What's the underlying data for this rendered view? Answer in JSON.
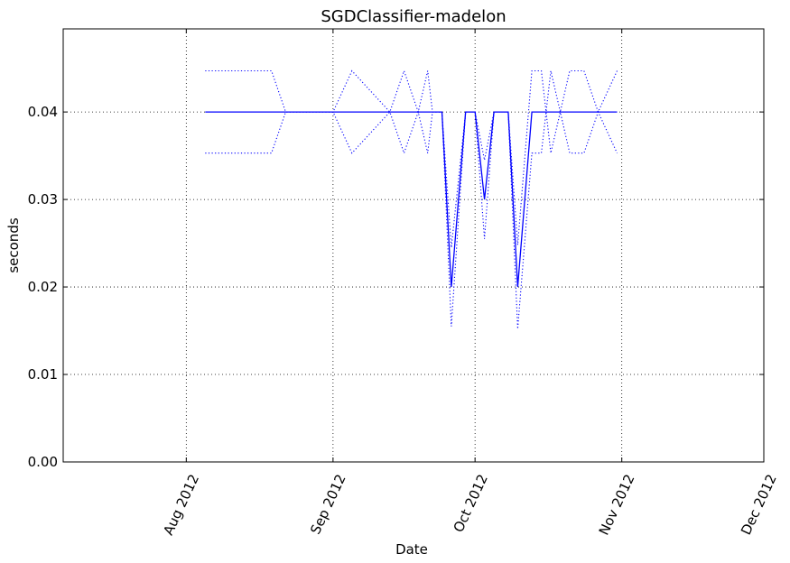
{
  "chart_data": {
    "type": "line",
    "title": "SGDClassifier-madelon",
    "xlabel": "Date",
    "ylabel": "seconds",
    "xlim": [
      "2012-07-06",
      "2012-12-01"
    ],
    "ylim": [
      0,
      0.0495
    ],
    "grid": true,
    "x_ticks": [
      {
        "date": "2012-08-01",
        "label": "Aug 2012"
      },
      {
        "date": "2012-09-01",
        "label": "Sep 2012"
      },
      {
        "date": "2012-10-01",
        "label": "Oct 2012"
      },
      {
        "date": "2012-11-01",
        "label": "Nov 2012"
      },
      {
        "date": "2012-12-01",
        "label": "Dec 2012"
      }
    ],
    "y_ticks": [
      {
        "value": 0,
        "label": "0.00"
      },
      {
        "value": 0.01,
        "label": "0.01"
      },
      {
        "value": 0.02,
        "label": "0.02"
      },
      {
        "value": 0.03,
        "label": "0.03"
      },
      {
        "value": 0.04,
        "label": "0.04"
      }
    ],
    "color": "#0000ff",
    "series": [
      {
        "style": "solid",
        "x": [
          "2012-08-05",
          "2012-08-19",
          "2012-08-22",
          "2012-09-01",
          "2012-09-05",
          "2012-09-13",
          "2012-09-16",
          "2012-09-19",
          "2012-09-21",
          "2012-09-22",
          "2012-09-24",
          "2012-09-26",
          "2012-09-29",
          "2012-10-01",
          "2012-10-03",
          "2012-10-05",
          "2012-10-07",
          "2012-10-08",
          "2012-10-10",
          "2012-10-13",
          "2012-10-15",
          "2012-10-17",
          "2012-10-21",
          "2012-10-24",
          "2012-10-27",
          "2012-10-31"
        ],
        "values": [
          0.04,
          0.04,
          0.04,
          0.04,
          0.04,
          0.04,
          0.04,
          0.04,
          0.04,
          0.04,
          0.04,
          0.02,
          0.04,
          0.04,
          0.03,
          0.04,
          0.04,
          0.04,
          0.02,
          0.04,
          0.04,
          0.04,
          0.04,
          0.04,
          0.04,
          0.04
        ]
      },
      {
        "style": "dotted",
        "x": [
          "2012-08-05",
          "2012-08-19",
          "2012-08-22",
          "2012-09-01",
          "2012-09-05",
          "2012-09-13",
          "2012-09-16",
          "2012-09-19",
          "2012-09-21",
          "2012-09-22",
          "2012-09-24",
          "2012-09-26",
          "2012-09-29",
          "2012-10-01",
          "2012-10-03",
          "2012-10-05",
          "2012-10-07",
          "2012-10-08",
          "2012-10-10",
          "2012-10-13",
          "2012-10-15",
          "2012-10-17",
          "2012-10-21",
          "2012-10-24",
          "2012-10-27",
          "2012-10-31"
        ],
        "values": [
          0.0447,
          0.0447,
          0.04,
          0.04,
          0.0447,
          0.04,
          0.0447,
          0.04,
          0.0447,
          0.04,
          0.04,
          0.0245,
          0.04,
          0.04,
          0.0345,
          0.04,
          0.04,
          0.04,
          0.0248,
          0.0447,
          0.0447,
          0.0353,
          0.0447,
          0.0447,
          0.04,
          0.0447
        ]
      },
      {
        "style": "dotted",
        "x": [
          "2012-08-05",
          "2012-08-19",
          "2012-08-22",
          "2012-09-01",
          "2012-09-05",
          "2012-09-13",
          "2012-09-16",
          "2012-09-19",
          "2012-09-21",
          "2012-09-22",
          "2012-09-24",
          "2012-09-26",
          "2012-09-29",
          "2012-10-01",
          "2012-10-03",
          "2012-10-05",
          "2012-10-07",
          "2012-10-08",
          "2012-10-10",
          "2012-10-13",
          "2012-10-15",
          "2012-10-17",
          "2012-10-21",
          "2012-10-24",
          "2012-10-27",
          "2012-10-31"
        ],
        "values": [
          0.0353,
          0.0353,
          0.04,
          0.04,
          0.0353,
          0.04,
          0.0353,
          0.04,
          0.0353,
          0.04,
          0.04,
          0.0155,
          0.04,
          0.04,
          0.0255,
          0.04,
          0.04,
          0.04,
          0.0152,
          0.0353,
          0.0353,
          0.0447,
          0.0353,
          0.0353,
          0.04,
          0.0353
        ]
      }
    ]
  }
}
